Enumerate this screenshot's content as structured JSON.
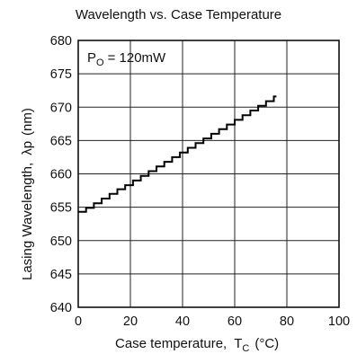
{
  "chart_data": {
    "type": "line",
    "title": "Wavelength vs. Case Temperature",
    "xlabel": "Case temperature,",
    "xlabel_symbol": "T",
    "xlabel_sub": "C",
    "xlabel_unit": "(°C)",
    "ylabel": "Lasing Wavelength,",
    "ylabel_symbol": "λp",
    "ylabel_unit": "(nm)",
    "annotation_prefix": "P",
    "annotation_sub": "O",
    "annotation_value": "= 120mW",
    "xlim": [
      0,
      100
    ],
    "ylim": [
      640,
      680
    ],
    "x_ticks": [
      "0",
      "20",
      "40",
      "60",
      "80",
      "100"
    ],
    "y_ticks": [
      "640",
      "645",
      "650",
      "655",
      "660",
      "665",
      "670",
      "675",
      "680"
    ],
    "grid": true,
    "series": [
      {
        "x": [
          0,
          3,
          6,
          9,
          12,
          15,
          18,
          21,
          24,
          27,
          30,
          33,
          36,
          39,
          42,
          45,
          48,
          51,
          54,
          57,
          60,
          63,
          66,
          69,
          72,
          75,
          76
        ],
        "y": [
          654.3,
          654.9,
          655.6,
          656.3,
          657.0,
          657.7,
          658.3,
          659.0,
          659.7,
          660.4,
          661.1,
          661.8,
          662.5,
          663.2,
          663.9,
          664.6,
          665.3,
          666.0,
          666.7,
          667.4,
          668.1,
          668.8,
          669.5,
          670.2,
          670.9,
          671.6,
          671.6
        ]
      }
    ]
  }
}
